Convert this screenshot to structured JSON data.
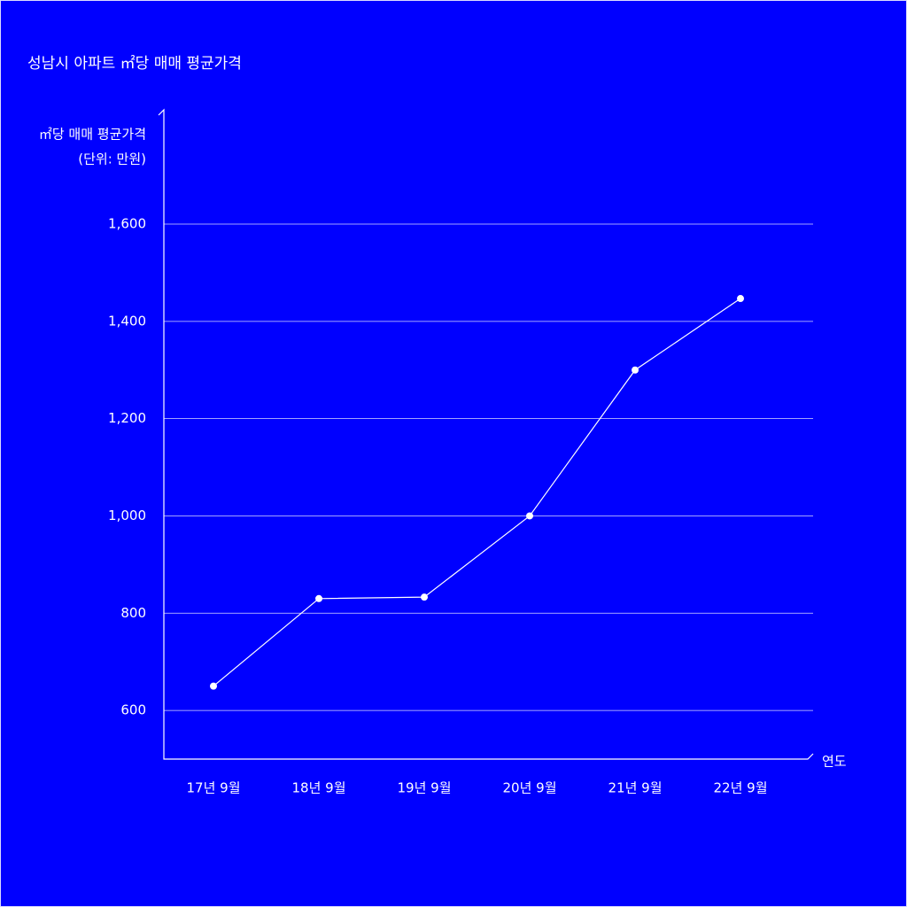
{
  "chart_data": {
    "type": "line",
    "title": "성남시 아파트 ㎡당 매매 평균가격",
    "y_label": "㎡당 매매 평균가격",
    "y_unit": "(단위: 만원)",
    "x_label": "연도",
    "categories": [
      "17년 9월",
      "18년 9월",
      "19년 9월",
      "20년 9월",
      "21년 9월",
      "22년 9월"
    ],
    "values": [
      650,
      830,
      833,
      1000,
      1300,
      1447
    ],
    "color": "#ffffff",
    "ylim": [
      500,
      1835
    ],
    "yticks": [
      600,
      800,
      {
        "value": 1000,
        "label": "1,000"
      },
      {
        "value": 1200,
        "label": "1,200"
      },
      {
        "value": 1400,
        "label": "1,400"
      },
      {
        "value": 1600,
        "label": "1,600"
      }
    ],
    "grid": true
  }
}
